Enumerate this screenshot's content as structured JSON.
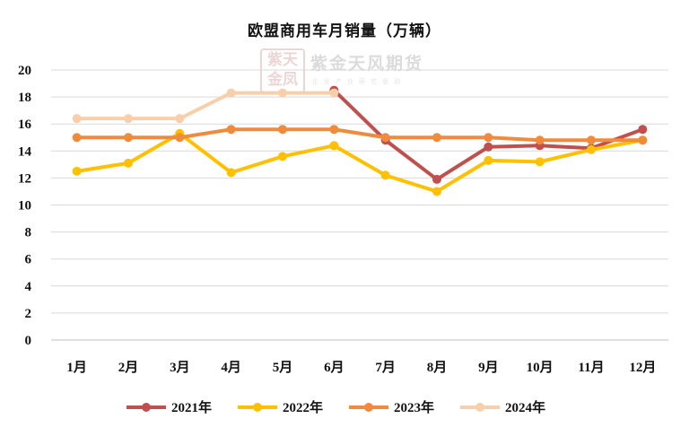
{
  "chart_data": {
    "type": "line",
    "title": "欧盟商用车月销量（万辆）",
    "categories": [
      "1月",
      "2月",
      "3月",
      "4月",
      "5月",
      "6月",
      "7月",
      "8月",
      "9月",
      "10月",
      "11月",
      "12月"
    ],
    "ylim": [
      0,
      20
    ],
    "yticks": [
      "0",
      "2",
      "4",
      "6",
      "8",
      "10",
      "12",
      "14",
      "16",
      "18",
      "20"
    ],
    "grid": true,
    "legend_position": "bottom",
    "series": [
      {
        "name": "2021年",
        "color": "#c0504d",
        "values": [
          null,
          null,
          null,
          null,
          null,
          18.5,
          14.8,
          11.9,
          14.3,
          14.4,
          14.2,
          15.6
        ]
      },
      {
        "name": "2022年",
        "color": "#ffc000",
        "values": [
          12.5,
          13.1,
          15.3,
          12.4,
          13.6,
          14.4,
          12.2,
          11.0,
          13.3,
          13.2,
          14.1,
          14.8
        ]
      },
      {
        "name": "2023年",
        "color": "#f08a3c",
        "values": [
          15.0,
          15.0,
          15.0,
          15.6,
          15.6,
          15.6,
          15.0,
          15.0,
          15.0,
          14.8,
          14.8,
          14.8
        ]
      },
      {
        "name": "2024年",
        "color": "#f9cfab",
        "values": [
          16.4,
          16.4,
          16.4,
          18.3,
          18.3,
          18.3,
          null,
          null,
          null,
          null,
          null,
          null
        ]
      }
    ]
  },
  "watermark": {
    "logo_text": "紫天金凤",
    "name": "紫金天风期货",
    "slogan": "企业产业研究驱动"
  }
}
